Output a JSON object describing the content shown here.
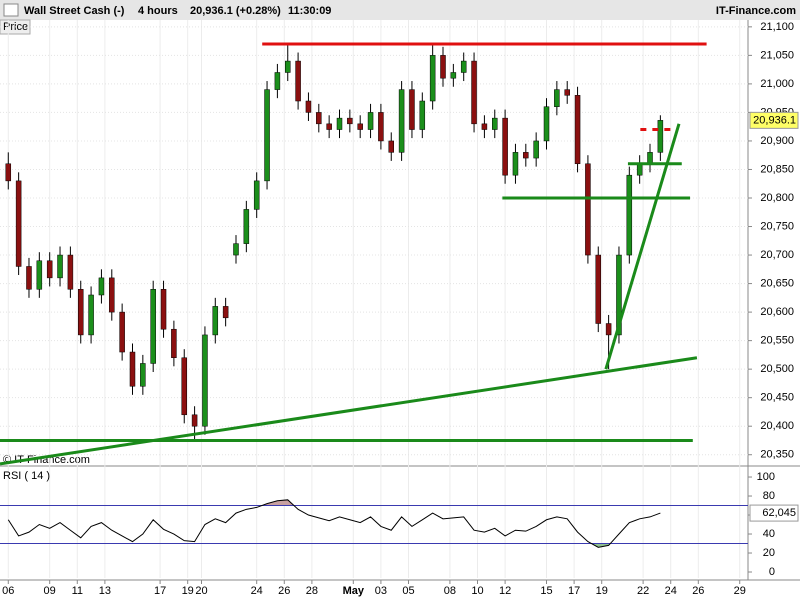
{
  "header": {
    "symbol": "Wall Street Cash (-)",
    "timeframe": "4 hours",
    "quote": "20,936.1 (+0.28%)",
    "time": "11:30:09",
    "brand": "IT-Finance.com",
    "panel": "Price",
    "watermark": "© IT-Finance.com"
  },
  "chart_data": [
    {
      "type": "candlestick",
      "up_color": "#1b8f1b",
      "down_color": "#8b1010",
      "grid": true,
      "xlim": [
        -0.6,
        53.6
      ],
      "ylim": [
        20332,
        21112
      ],
      "xticks": [
        {
          "value": 0,
          "label": "06"
        },
        {
          "value": 3,
          "label": "09"
        },
        {
          "value": 5,
          "label": "11"
        },
        {
          "value": 7,
          "label": "13"
        },
        {
          "value": 11,
          "label": "17"
        },
        {
          "value": 13,
          "label": "19"
        },
        {
          "value": 14,
          "label": "20"
        },
        {
          "value": 18,
          "label": "24"
        },
        {
          "value": 20,
          "label": "26"
        },
        {
          "value": 22,
          "label": "28"
        },
        {
          "value": 25,
          "label": "May"
        },
        {
          "value": 27,
          "label": "03"
        },
        {
          "value": 29,
          "label": "05"
        },
        {
          "value": 32,
          "label": "08"
        },
        {
          "value": 34,
          "label": "10"
        },
        {
          "value": 36,
          "label": "12"
        },
        {
          "value": 39,
          "label": "15"
        },
        {
          "value": 41,
          "label": "17"
        },
        {
          "value": 43,
          "label": "19"
        },
        {
          "value": 46,
          "label": "22"
        },
        {
          "value": 48,
          "label": "24"
        },
        {
          "value": 50,
          "label": "26"
        },
        {
          "value": 53,
          "label": "29"
        }
      ],
      "yticks": [
        {
          "value": 21100,
          "label": "21,100"
        },
        {
          "value": 21050,
          "label": "21,050"
        },
        {
          "value": 21000,
          "label": "21,000"
        },
        {
          "value": 20950,
          "label": "20,950"
        },
        {
          "value": 20900,
          "label": "20,900"
        },
        {
          "value": 20850,
          "label": "20,850"
        },
        {
          "value": 20800,
          "label": "20,800"
        },
        {
          "value": 20750,
          "label": "20,750"
        },
        {
          "value": 20700,
          "label": "20,700"
        },
        {
          "value": 20650,
          "label": "20,650"
        },
        {
          "value": 20600,
          "label": "20,600"
        },
        {
          "value": 20550,
          "label": "20,550"
        },
        {
          "value": 20500,
          "label": "20,500"
        },
        {
          "value": 20450,
          "label": "20,450"
        },
        {
          "value": 20400,
          "label": "20,400"
        },
        {
          "value": 20350,
          "label": "20,350"
        }
      ],
      "x": [
        0,
        0.75,
        1.5,
        2.25,
        3,
        3.75,
        4.5,
        5.25,
        6,
        6.75,
        7.5,
        8.25,
        9,
        9.75,
        10.5,
        11.25,
        12,
        12.75,
        13.5,
        14.25,
        15,
        15.75,
        16.5,
        17.25,
        18,
        18.75,
        19.5,
        20.25,
        21,
        21.75,
        22.5,
        23.25,
        24,
        24.75,
        25.5,
        26.25,
        27,
        27.75,
        28.5,
        29.25,
        30,
        30.75,
        31.5,
        32.25,
        33,
        33.75,
        34.5,
        35.25,
        36,
        36.75,
        37.5,
        38.25,
        39,
        39.75,
        40.5,
        41.25,
        42,
        42.75,
        43.5,
        44.25,
        45,
        45.75,
        46.5,
        47.25
      ],
      "open": [
        20860,
        20830,
        20680,
        20640,
        20690,
        20660,
        20700,
        20640,
        20560,
        20630,
        20660,
        20600,
        20530,
        20470,
        20510,
        20640,
        20570,
        20520,
        20420,
        20400,
        20560,
        20610,
        20700,
        20720,
        20780,
        20830,
        20990,
        21020,
        21040,
        20970,
        20950,
        20930,
        20920,
        20940,
        20930,
        20920,
        20950,
        20900,
        20880,
        20990,
        20920,
        20970,
        21050,
        21010,
        21020,
        21040,
        20930,
        20920,
        20940,
        20840,
        20880,
        20870,
        20900,
        20960,
        20990,
        20980,
        20860,
        20700,
        20580,
        20560,
        20700,
        20840,
        20860,
        20880
      ],
      "high": [
        20880,
        20845,
        20695,
        20705,
        20705,
        20715,
        20715,
        20655,
        20645,
        20675,
        20675,
        20615,
        20545,
        20525,
        20655,
        20655,
        20585,
        20535,
        20435,
        20575,
        20625,
        20625,
        20735,
        20795,
        20845,
        21005,
        21035,
        21070,
        21055,
        20985,
        20965,
        20945,
        20955,
        20955,
        20945,
        20965,
        20965,
        20915,
        21005,
        21005,
        20985,
        21070,
        21065,
        21035,
        21055,
        21055,
        20945,
        20955,
        20955,
        20895,
        20895,
        20915,
        20975,
        21005,
        21005,
        20995,
        20875,
        20715,
        20595,
        20715,
        20855,
        20875,
        20895,
        20945
      ],
      "low": [
        20815,
        20665,
        20625,
        20625,
        20645,
        20645,
        20625,
        20545,
        20545,
        20615,
        20585,
        20515,
        20455,
        20455,
        20495,
        20555,
        20505,
        20405,
        20375,
        20385,
        20545,
        20575,
        20685,
        20705,
        20765,
        20815,
        20975,
        21005,
        20955,
        20935,
        20915,
        20905,
        20905,
        20915,
        20905,
        20905,
        20885,
        20865,
        20865,
        20905,
        20905,
        20955,
        20995,
        20995,
        21005,
        20915,
        20905,
        20905,
        20825,
        20825,
        20855,
        20855,
        20885,
        20945,
        20965,
        20845,
        20685,
        20565,
        20500,
        20545,
        20685,
        20825,
        20845,
        20865
      ],
      "close": [
        20830,
        20680,
        20640,
        20690,
        20660,
        20700,
        20640,
        20560,
        20630,
        20660,
        20600,
        20530,
        20470,
        20510,
        20640,
        20570,
        20520,
        20420,
        20400,
        20560,
        20610,
        20590,
        20720,
        20780,
        20830,
        20990,
        21020,
        21040,
        20970,
        20950,
        20930,
        20920,
        20940,
        20930,
        20920,
        20950,
        20900,
        20880,
        20990,
        20920,
        20970,
        21050,
        21010,
        21020,
        21040,
        20930,
        20920,
        20940,
        20840,
        20880,
        20870,
        20900,
        20960,
        20990,
        20980,
        20860,
        20700,
        20580,
        20560,
        20700,
        20840,
        20860,
        20880,
        20936.1
      ],
      "last_label": "20,936.1",
      "annotations": [
        {
          "color": "#e01010",
          "x": [
            18.4,
            50.6
          ],
          "y": [
            21070,
            21070
          ]
        },
        {
          "color": "#e01010",
          "x": [
            45.8,
            48
          ],
          "y": [
            20920,
            20920
          ],
          "dash": true
        },
        {
          "color": "#1a8a1a",
          "x": [
            35.8,
            49.4
          ],
          "y": [
            20800,
            20800
          ]
        },
        {
          "color": "#1a8a1a",
          "x": [
            44.9,
            48.8
          ],
          "y": [
            20860,
            20860
          ]
        },
        {
          "color": "#1a8a1a",
          "x": [
            -0.6,
            49.6
          ],
          "y": [
            20375,
            20375
          ]
        },
        {
          "color": "#1a8a1a",
          "x": [
            -0.6,
            49.9
          ],
          "y": [
            20334,
            20520
          ]
        },
        {
          "color": "#1a8a1a",
          "x": [
            43.3,
            48.6
          ],
          "y": [
            20500,
            20930
          ]
        }
      ]
    },
    {
      "type": "line",
      "title": "RSI ( 14 )",
      "color": "#000000",
      "xlim": [
        -0.6,
        53.6
      ],
      "ylim": [
        -6.3,
        109.5
      ],
      "yticks": [
        0,
        20,
        40,
        60,
        80,
        100
      ],
      "levels": [
        30,
        70
      ],
      "level_color": "#3a3ab0",
      "over_color": "#c8a0a0",
      "under_color": "#90c090",
      "x": [
        0,
        0.75,
        1.5,
        2.25,
        3,
        3.75,
        4.5,
        5.25,
        6,
        6.75,
        7.5,
        8.25,
        9,
        9.75,
        10.5,
        11.25,
        12,
        12.75,
        13.5,
        14.25,
        15,
        15.75,
        16.5,
        17.25,
        18,
        18.75,
        19.5,
        20.25,
        21,
        21.75,
        22.5,
        23.25,
        24,
        24.75,
        25.5,
        26.25,
        27,
        27.75,
        28.5,
        29.25,
        30,
        30.75,
        31.5,
        32.25,
        33,
        33.75,
        34.5,
        35.25,
        36,
        36.75,
        37.5,
        38.25,
        39,
        39.75,
        40.5,
        41.25,
        42,
        42.75,
        43.5,
        44.25,
        45,
        45.75,
        46.5,
        47.25
      ],
      "values": [
        55,
        38,
        42,
        50,
        46,
        52,
        44,
        36,
        48,
        52,
        44,
        38,
        32,
        40,
        55,
        45,
        40,
        33,
        32,
        50,
        56,
        52,
        62,
        66,
        68,
        72,
        75,
        76,
        66,
        60,
        57,
        54,
        58,
        55,
        52,
        58,
        48,
        44,
        58,
        48,
        55,
        62,
        56,
        57,
        58,
        44,
        42,
        46,
        38,
        44,
        43,
        48,
        55,
        58,
        56,
        42,
        32,
        26,
        28,
        40,
        52,
        56,
        58,
        62.045
      ],
      "last_label": "62,045"
    }
  ]
}
